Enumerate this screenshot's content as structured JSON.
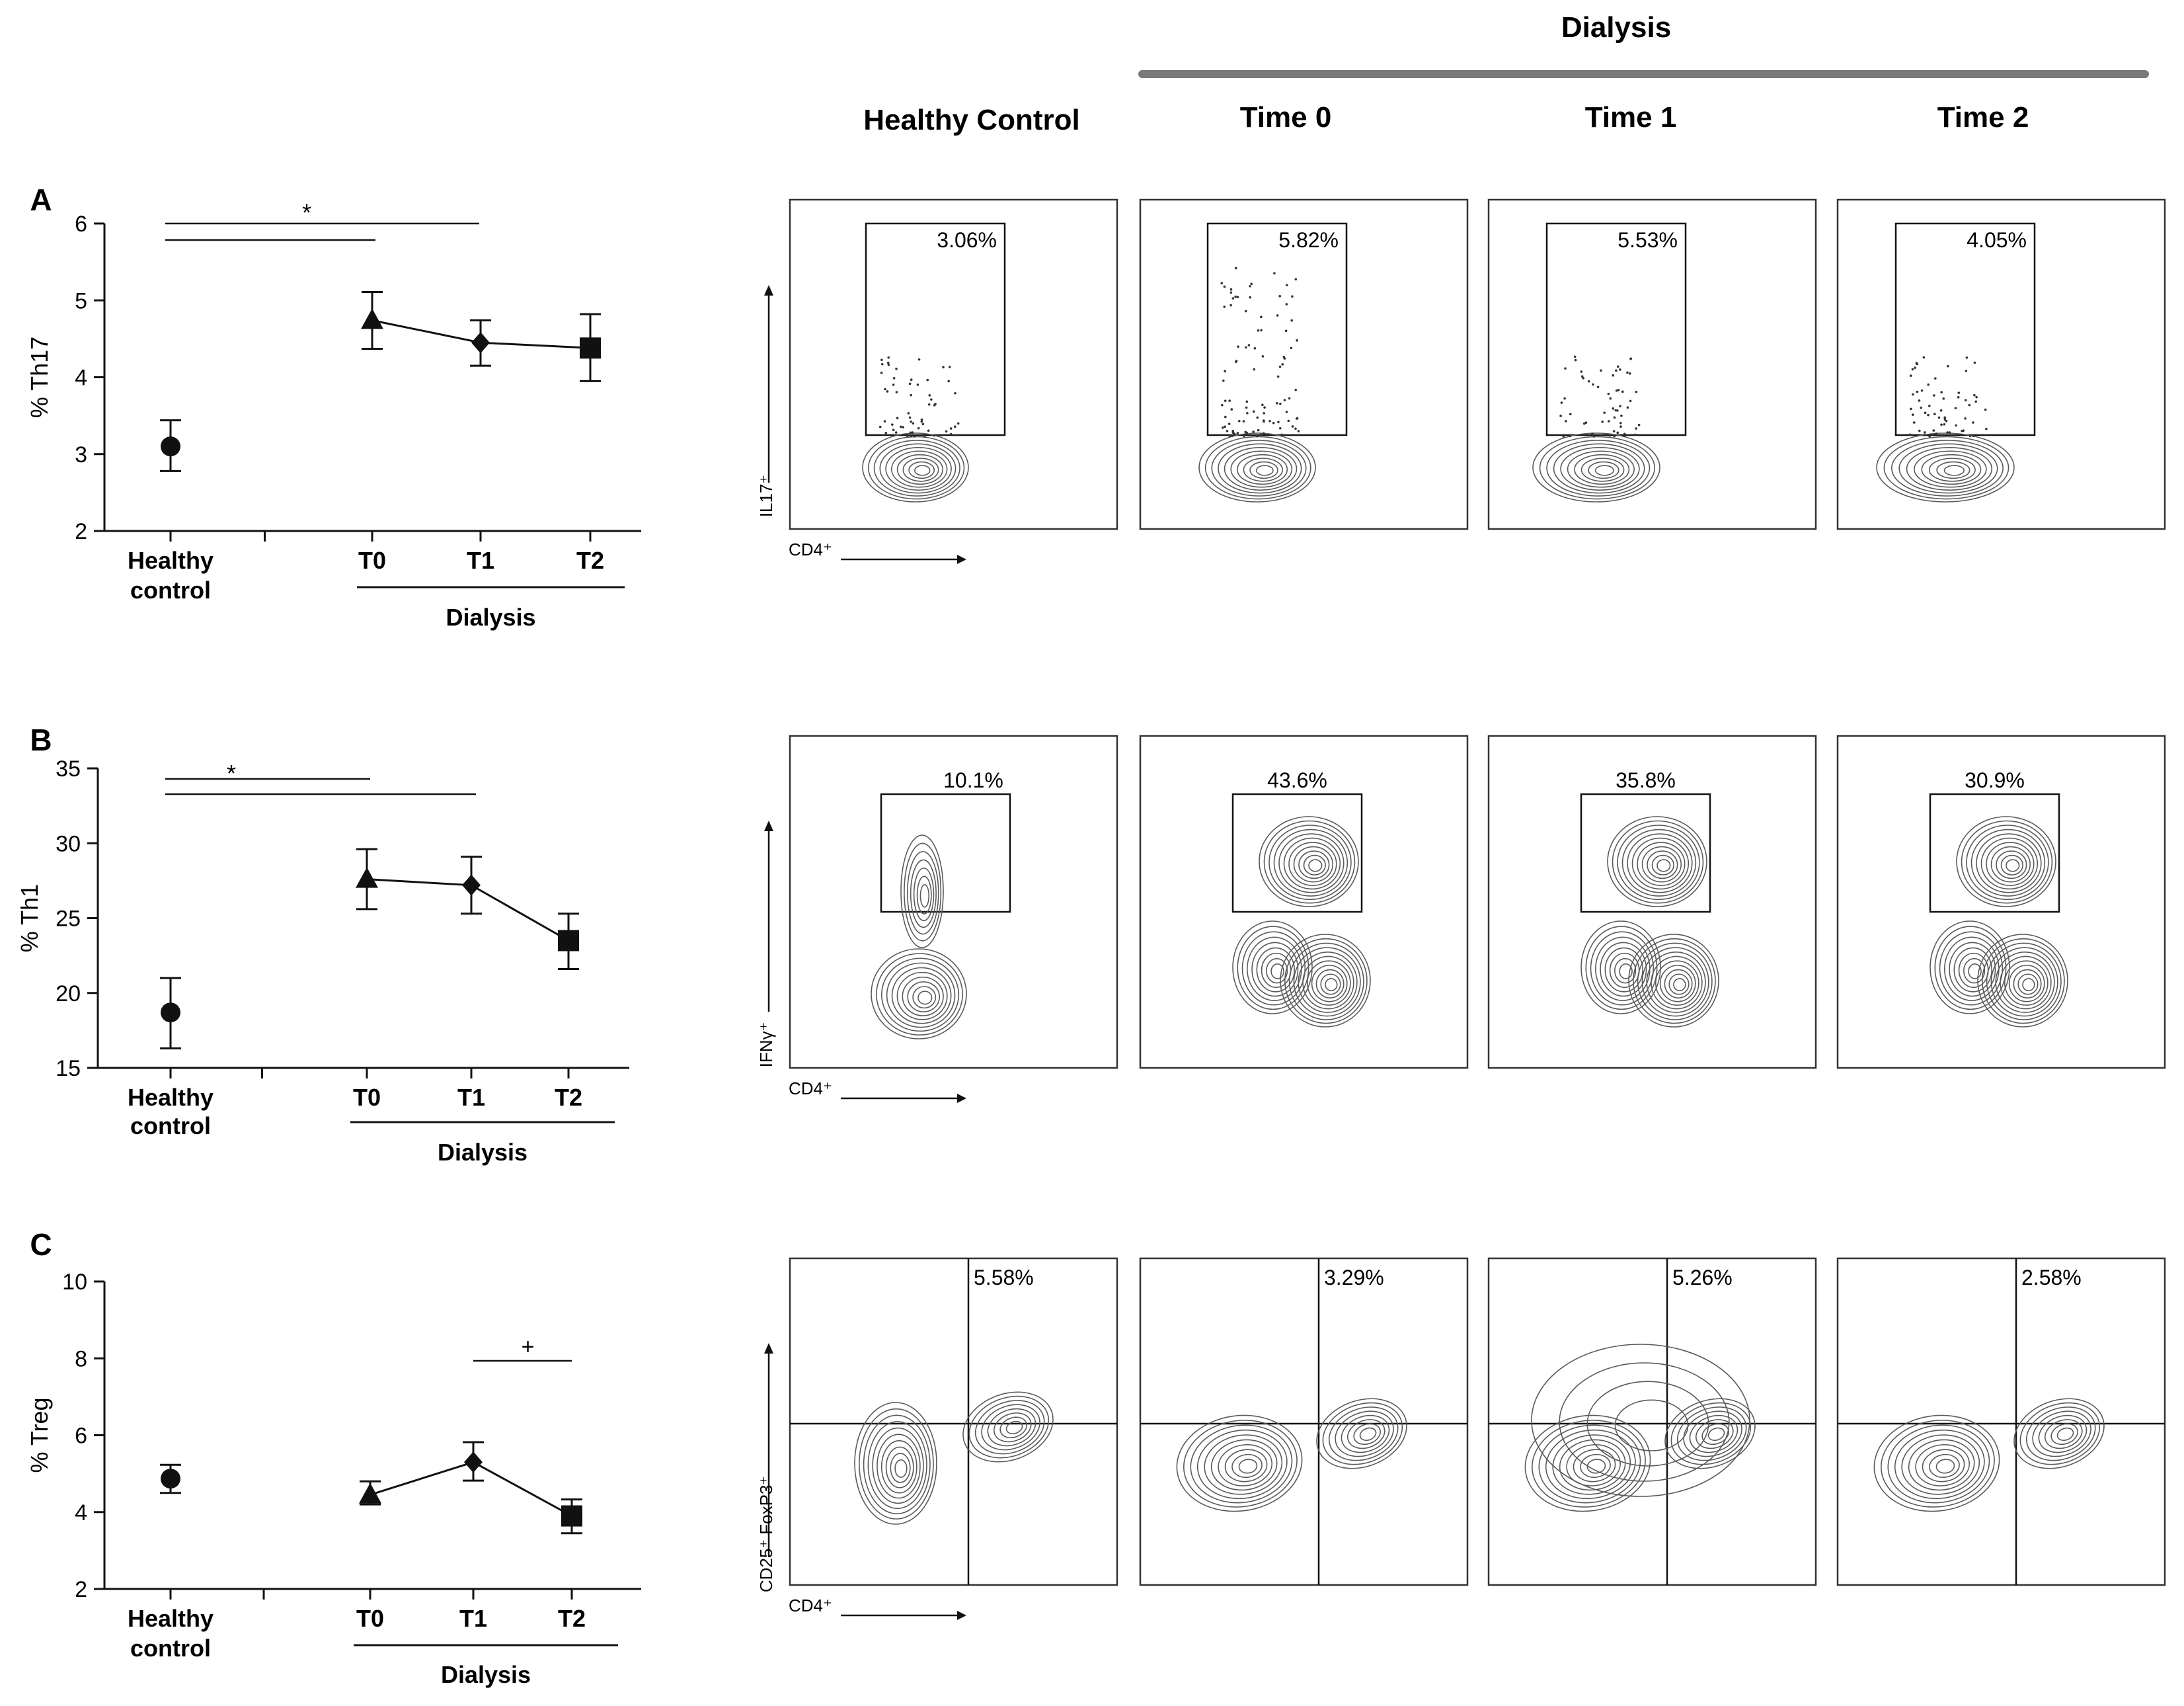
{
  "figure": {
    "top_header": "Dialysis",
    "column_headers": [
      "Healthy Control",
      "Time 0",
      "Time 1",
      "Time 2"
    ],
    "group_label": "Dialysis",
    "x_categories": [
      "Healthy\ncontrol",
      "T0",
      "T1",
      "T2"
    ],
    "colors": {
      "ink": "#111111",
      "contour": "#5a5a5a",
      "header_bar": "#7a7a7a"
    }
  },
  "chart_data": [
    {
      "panel": "A",
      "type": "scatter",
      "ylabel": "% Th17",
      "ylim": [
        2,
        6
      ],
      "yticks": [
        2,
        3,
        4,
        5,
        6
      ],
      "categories": [
        "Healthy control",
        "T0",
        "T1",
        "T2"
      ],
      "points": [
        {
          "cat": "Healthy control",
          "y": 3.1,
          "err_low": 2.78,
          "err_high": 3.44,
          "marker": "circle"
        },
        {
          "cat": "T0",
          "y": 4.74,
          "err_low": 4.37,
          "err_high": 5.11,
          "marker": "triangle"
        },
        {
          "cat": "T1",
          "y": 4.45,
          "err_low": 4.15,
          "err_high": 4.74,
          "marker": "diamond"
        },
        {
          "cat": "T2",
          "y": 4.38,
          "err_low": 3.95,
          "err_high": 4.82,
          "marker": "square"
        }
      ],
      "connected": [
        "T0",
        "T1",
        "T2"
      ],
      "annotations": [
        {
          "text": "*",
          "from": "Healthy control",
          "to_lines": [
            "T0",
            "T1"
          ]
        }
      ],
      "flow": {
        "ylabel": "IL17⁺",
        "xlabel": "CD4⁺",
        "percentages": [
          "3.06%",
          "5.82%",
          "5.53%",
          "4.05%"
        ]
      }
    },
    {
      "panel": "B",
      "type": "scatter",
      "ylabel": "% Th1",
      "ylim": [
        15,
        35
      ],
      "yticks": [
        15,
        20,
        25,
        30,
        35
      ],
      "categories": [
        "Healthy control",
        "T0",
        "T1",
        "T2"
      ],
      "points": [
        {
          "cat": "Healthy control",
          "y": 18.7,
          "err_low": 16.3,
          "err_high": 21.0,
          "marker": "circle"
        },
        {
          "cat": "T0",
          "y": 27.6,
          "err_low": 25.6,
          "err_high": 29.6,
          "marker": "triangle"
        },
        {
          "cat": "T1",
          "y": 27.2,
          "err_low": 25.3,
          "err_high": 29.1,
          "marker": "diamond"
        },
        {
          "cat": "T2",
          "y": 23.5,
          "err_low": 21.6,
          "err_high": 25.3,
          "marker": "square"
        }
      ],
      "connected": [
        "T0",
        "T1",
        "T2"
      ],
      "annotations": [
        {
          "text": "*",
          "from": "Healthy control",
          "to_lines": [
            "T0",
            "T1"
          ]
        }
      ],
      "flow": {
        "ylabel": "IFNγ⁺",
        "xlabel": "CD4⁺",
        "percentages": [
          "10.1%",
          "43.6%",
          "35.8%",
          "30.9%"
        ]
      }
    },
    {
      "panel": "C",
      "type": "scatter",
      "ylabel": "% Treg",
      "ylim": [
        2,
        10
      ],
      "yticks": [
        2,
        4,
        6,
        8,
        10
      ],
      "categories": [
        "Healthy control",
        "T0",
        "T1",
        "T2"
      ],
      "points": [
        {
          "cat": "Healthy control",
          "y": 4.87,
          "err_low": 4.5,
          "err_high": 5.23,
          "marker": "circle"
        },
        {
          "cat": "T0",
          "y": 4.45,
          "err_low": 4.2,
          "err_high": 4.8,
          "marker": "triangle"
        },
        {
          "cat": "T1",
          "y": 5.3,
          "err_low": 4.82,
          "err_high": 5.82,
          "marker": "diamond"
        },
        {
          "cat": "T2",
          "y": 3.9,
          "err_low": 3.45,
          "err_high": 4.33,
          "marker": "square"
        }
      ],
      "connected": [
        "T0",
        "T1",
        "T2"
      ],
      "annotations": [
        {
          "text": "+",
          "from": "T1",
          "to": "T2"
        }
      ],
      "flow": {
        "ylabel": "CD25⁺ FoxP3⁺",
        "xlabel": "CD4⁺",
        "percentages": [
          "5.58%",
          "3.29%",
          "5.26%",
          "2.58%"
        ]
      }
    }
  ]
}
